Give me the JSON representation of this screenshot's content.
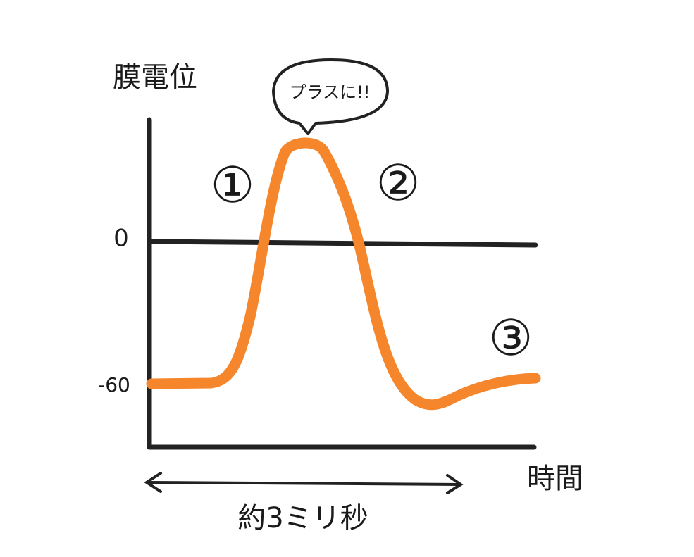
{
  "y_axis_label": "膜電位",
  "ticks": [
    "0",
    "-60"
  ],
  "markers": [
    "①",
    "②",
    "③"
  ],
  "callout": "プラスに!!",
  "x_axis_label": "時間",
  "duration": "約3ミリ秒"
}
